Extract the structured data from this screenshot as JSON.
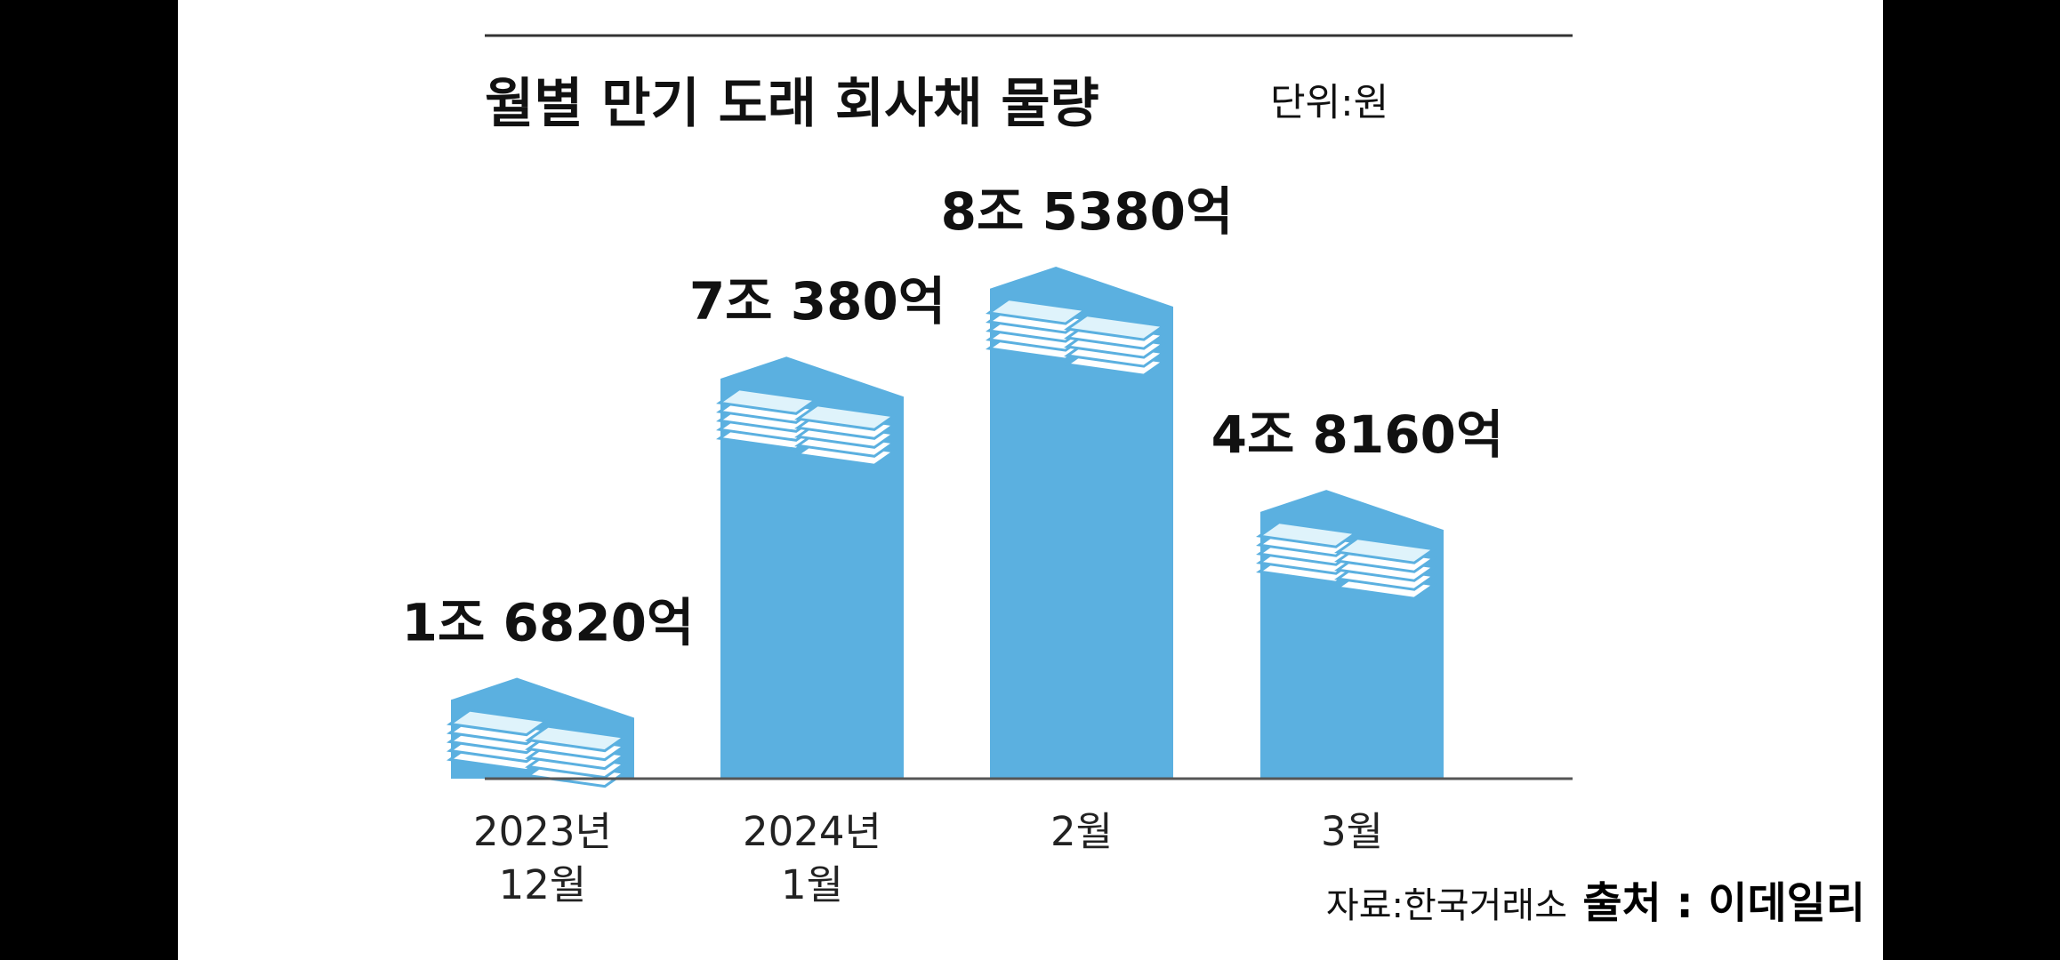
{
  "chart_data": {
    "type": "bar",
    "title": "월별 만기 도래 회사채 물량",
    "unit": "단위:원",
    "categories": [
      [
        "2023년",
        "12월"
      ],
      [
        "2024년",
        "1월"
      ],
      [
        "2월"
      ],
      [
        "3월"
      ]
    ],
    "values": [
      16820,
      70380,
      85380,
      48160
    ],
    "value_unit": "억원",
    "data_labels": [
      "1조 6820억",
      "7조 380억",
      "8조 5380억",
      "4조 8160억"
    ],
    "source": "자료:한국거래소",
    "bar_color": "#5bb0e0"
  },
  "credit": "출처 : 이데일리"
}
